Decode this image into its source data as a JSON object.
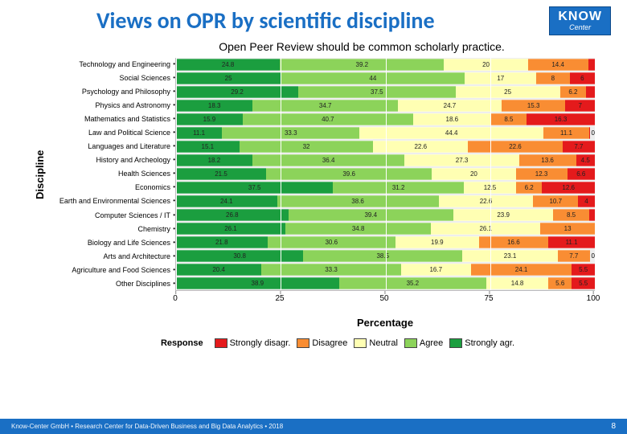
{
  "title": "Views on OPR by scientific discipline",
  "logo": {
    "main": "KNOW",
    "sub": "Center"
  },
  "chart": {
    "type": "stacked-bar-horizontal",
    "title": "Open Peer Review should be common scholarly practice.",
    "ylabel": "Discipline",
    "xlabel": "Percentage",
    "xlim": [
      0,
      100
    ],
    "xticks": [
      0,
      25,
      50,
      75,
      100
    ],
    "background_color": "#eeeeee",
    "grid_color": "#ffffff",
    "label_fontsize_pt": 9,
    "value_fontsize_pt": 8,
    "axis_title_fontsize_pt": 13,
    "legend": {
      "title": "Response",
      "items": [
        "Strongly disagr.",
        "Disagree",
        "Neutral",
        "Agree",
        "Strongly agr."
      ],
      "colors": [
        "#e41a1c",
        "#f98d33",
        "#ffffb3",
        "#8cd35a",
        "#1b9e3f"
      ]
    },
    "categories": [
      "Technology and Engineering",
      "Social Sciences",
      "Psychology and Philosophy",
      "Physics and Astronomy",
      "Mathematics and Statistics",
      "Law and Political Science",
      "Languages and Literature",
      "History and Archeology",
      "Health Sciences",
      "Economics",
      "Earth and Environmental Sciences",
      "Computer Sciences / IT",
      "Chemistry",
      "Biology and Life Sciences",
      "Arts and Architecture",
      "Agriculture and Food Sciences",
      "Other Disciplines"
    ],
    "series": [
      {
        "name": "Strongly agr.",
        "color": "#1b9e3f",
        "values": [
          24.8,
          25,
          29.2,
          18.3,
          15.9,
          11.1,
          15.1,
          18.2,
          21.5,
          37.5,
          24.1,
          26.8,
          26.1,
          21.8,
          30.8,
          20.4,
          38.9
        ]
      },
      {
        "name": "Agree",
        "color": "#8cd35a",
        "values": [
          39.2,
          44,
          37.5,
          34.7,
          40.7,
          33.3,
          32.0,
          36.4,
          39.6,
          31.2,
          38.6,
          39.4,
          34.8,
          30.6,
          38.5,
          33.3,
          35.2
        ]
      },
      {
        "name": "Neutral",
        "color": "#ffffb3",
        "values": [
          20,
          17,
          25,
          24.7,
          18.6,
          44.4,
          22.6,
          27.3,
          20,
          12.5,
          22.6,
          23.9,
          26.1,
          19.9,
          23.1,
          16.7,
          14.8
        ]
      },
      {
        "name": "Disagree",
        "color": "#f98d33",
        "values": [
          14.4,
          8,
          6.2,
          15.3,
          8.5,
          11.1,
          22.6,
          13.6,
          12.3,
          6.2,
          10.7,
          8.5,
          13.0,
          16.6,
          7.7,
          24.1,
          5.6
        ]
      },
      {
        "name": "Strongly disagr.",
        "color": "#e41a1c",
        "values": [
          1.6,
          6,
          2.1,
          7.0,
          16.3,
          0.1,
          7.7,
          4.5,
          6.6,
          12.6,
          4.0,
          1.4,
          0.0,
          11.1,
          0.0,
          5.5,
          5.5
        ]
      }
    ],
    "value_display_threshold": 4.0,
    "show_trailing_zero": {
      "5": "0",
      "7": "",
      "14": "0"
    }
  },
  "footer": {
    "left": "Know-Center GmbH • Research Center for Data-Driven Business and Big Data Analytics • 2018",
    "page": "8"
  }
}
